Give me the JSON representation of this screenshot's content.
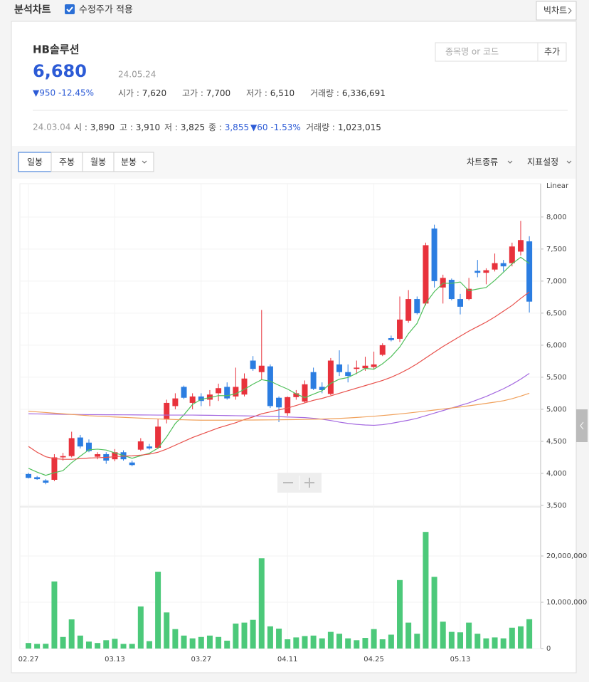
{
  "header": {
    "title": "분석차트",
    "checkbox": "수정주가 적용",
    "button": "빅차트"
  },
  "stock": {
    "name": "HB솔루션",
    "price": "6,680",
    "date": "24.05.24",
    "change": "▼950 -12.45%",
    "fields": [
      {
        "label": "시가 :",
        "value": "7,620"
      },
      {
        "label": "고가 :",
        "value": "7,700"
      },
      {
        "label": "저가 :",
        "value": "6,510"
      },
      {
        "label": "거래량 :",
        "value": "6,336,691"
      }
    ]
  },
  "search": {
    "placeholder": "종목명 or 코드",
    "button": "추가"
  },
  "detail": {
    "date": "24.03.04",
    "fields": [
      {
        "label": "시 :",
        "value": "3,890"
      },
      {
        "label": "고 :",
        "value": "3,910"
      },
      {
        "label": "저 :",
        "value": "3,825"
      },
      {
        "label": "종 :",
        "value": "3,855"
      },
      {
        "label": "",
        "value": "▼60 -1.53%"
      },
      {
        "label": "거래량 :",
        "value": "1,023,015"
      }
    ]
  },
  "tabs": [
    "일봉",
    "주봉",
    "월봉",
    "분봉"
  ],
  "menus": [
    "차트종류",
    "지표설정"
  ],
  "chart_data": {
    "type": "candlestick",
    "scale_label": "Linear",
    "up_color": "#e8323c",
    "down_color": "#2b7de1",
    "categories": [
      "02.27",
      null,
      null,
      null,
      null,
      null,
      null,
      null,
      null,
      null,
      "03.13",
      null,
      null,
      null,
      null,
      null,
      null,
      null,
      null,
      null,
      "03.27",
      null,
      null,
      null,
      null,
      null,
      null,
      null,
      null,
      null,
      "04.11",
      null,
      null,
      null,
      null,
      null,
      null,
      null,
      null,
      null,
      "04.25",
      null,
      null,
      null,
      null,
      null,
      null,
      null,
      null,
      null,
      "05.13",
      null,
      null,
      null,
      null,
      null,
      null,
      null,
      null
    ],
    "open": [
      3990,
      3940,
      3890,
      3900,
      4250,
      4270,
      4560,
      4480,
      4260,
      4300,
      4220,
      4330,
      4170,
      4370,
      4420,
      4400,
      4840,
      5050,
      5350,
      5100,
      5200,
      5150,
      5250,
      5350,
      5200,
      5230,
      5760,
      5580,
      5670,
      5180,
      4940,
      5190,
      5120,
      5580,
      5350,
      5240,
      5700,
      5580,
      5630,
      5640,
      5660,
      5850,
      6110,
      6100,
      6380,
      6720,
      6650,
      7820,
      6900,
      7020,
      6720,
      6720,
      7160,
      7130,
      7180,
      7280,
      7280,
      7460,
      7620
    ],
    "high": [
      4010,
      3960,
      3910,
      4300,
      4320,
      4650,
      4600,
      4530,
      4330,
      4330,
      4380,
      4360,
      4200,
      4550,
      4460,
      4850,
      5150,
      5250,
      5370,
      5250,
      5250,
      5300,
      5400,
      5420,
      5650,
      5560,
      5830,
      6550,
      5700,
      5200,
      5200,
      5300,
      5450,
      5650,
      5420,
      5800,
      5920,
      5700,
      5760,
      5820,
      5900,
      6030,
      6150,
      6760,
      6860,
      6760,
      7600,
      7880,
      7100,
      7040,
      6800,
      7050,
      7330,
      7200,
      7430,
      7330,
      7600,
      7940,
      7700
    ],
    "low": [
      3920,
      3900,
      3830,
      3880,
      4200,
      4250,
      4390,
      4330,
      4220,
      4150,
      4190,
      4200,
      4110,
      4350,
      4370,
      4380,
      4780,
      5000,
      5160,
      5000,
      5050,
      5050,
      5130,
      5150,
      5150,
      5200,
      5600,
      5460,
      5020,
      4800,
      4900,
      5150,
      5100,
      5300,
      5250,
      5220,
      5520,
      5420,
      5550,
      5600,
      5620,
      5830,
      6060,
      6050,
      6350,
      6480,
      6620,
      6900,
      6650,
      6700,
      6480,
      6700,
      7060,
      6950,
      7150,
      7150,
      7230,
      7400,
      6510
    ],
    "close": [
      3930,
      3910,
      3855,
      4250,
      4270,
      4550,
      4420,
      4350,
      4300,
      4200,
      4330,
      4220,
      4130,
      4500,
      4390,
      4730,
      5100,
      5170,
      5180,
      5200,
      5130,
      5230,
      5330,
      5170,
      5350,
      5480,
      5630,
      5680,
      5050,
      5030,
      5190,
      5250,
      5390,
      5320,
      5300,
      5760,
      5580,
      5520,
      5650,
      5680,
      5700,
      6000,
      6080,
      6400,
      6720,
      6500,
      7560,
      7000,
      7050,
      6720,
      6600,
      6880,
      7130,
      7170,
      7280,
      7230,
      7540,
      7640,
      6680
    ],
    "series": [
      {
        "color": "#4fbf5a",
        "values": [
          4080,
          4020,
          3970,
          4010,
          4043,
          4167,
          4269,
          4368,
          4378,
          4364,
          4320,
          4280,
          4236,
          4276,
          4314,
          4394,
          4570,
          4778,
          4914,
          5076,
          5156,
          5182,
          5214,
          5212,
          5242,
          5312,
          5392,
          5462,
          5438,
          5374,
          5316,
          5240,
          5182,
          5236,
          5290,
          5404,
          5470,
          5496,
          5562,
          5638,
          5626,
          5710,
          5822,
          5972,
          6180,
          6340,
          6652,
          6836,
          6966,
          6966,
          6986,
          6850,
          6876,
          6900,
          7012,
          7138,
          7270,
          7372,
          7274
        ]
      },
      {
        "color": "#e8504b",
        "values": [
          4420,
          4330,
          4260,
          4230,
          4220,
          4220,
          4230,
          4240,
          4245,
          4250,
          4260,
          4270,
          4275,
          4285,
          4300,
          4330,
          4380,
          4440,
          4500,
          4560,
          4610,
          4660,
          4710,
          4750,
          4790,
          4840,
          4880,
          4930,
          4960,
          4990,
          5020,
          5060,
          5100,
          5140,
          5170,
          5210,
          5250,
          5290,
          5330,
          5370,
          5410,
          5450,
          5500,
          5560,
          5630,
          5710,
          5800,
          5890,
          5980,
          6060,
          6140,
          6220,
          6290,
          6360,
          6440,
          6530,
          6620,
          6730,
          6830
        ]
      },
      {
        "color": "#a469e0",
        "values": [
          4930,
          4928,
          4926,
          4924,
          4922,
          4920,
          4918,
          4917,
          4916,
          4915,
          4915,
          4914,
          4913,
          4912,
          4911,
          4910,
          4910,
          4910,
          4910,
          4910,
          4908,
          4906,
          4904,
          4902,
          4900,
          4898,
          4896,
          4894,
          4890,
          4885,
          4880,
          4875,
          4870,
          4860,
          4845,
          4825,
          4800,
          4780,
          4765,
          4755,
          4750,
          4760,
          4780,
          4805,
          4830,
          4860,
          4900,
          4940,
          4980,
          5020,
          5060,
          5100,
          5150,
          5200,
          5260,
          5320,
          5390,
          5470,
          5560
        ]
      },
      {
        "color": "#f0a05a",
        "values": [
          4970,
          4960,
          4950,
          4940,
          4930,
          4920,
          4910,
          4900,
          4893,
          4886,
          4880,
          4874,
          4868,
          4862,
          4856,
          4850,
          4845,
          4840,
          4836,
          4833,
          4830,
          4830,
          4830,
          4830,
          4831,
          4832,
          4833,
          4834,
          4835,
          4836,
          4838,
          4840,
          4842,
          4845,
          4848,
          4852,
          4858,
          4865,
          4873,
          4882,
          4892,
          4903,
          4915,
          4928,
          4942,
          4957,
          4972,
          4988,
          5004,
          5020,
          5037,
          5055,
          5073,
          5092,
          5112,
          5133,
          5165,
          5205,
          5250
        ]
      }
    ],
    "ylim": [
      3500,
      8520
    ],
    "yticks": [
      {
        "value": 3500,
        "label": "3,500"
      },
      {
        "value": 4000,
        "label": "4,000"
      },
      {
        "value": 4500,
        "label": "4,500"
      },
      {
        "value": 5000,
        "label": "5,000"
      },
      {
        "value": 5500,
        "label": "5,500"
      },
      {
        "value": 6000,
        "label": "6,000"
      },
      {
        "value": 6500,
        "label": "6,500"
      },
      {
        "value": 7000,
        "label": "7,000"
      },
      {
        "value": 7500,
        "label": "7,500"
      },
      {
        "value": 8000,
        "label": "8,000"
      }
    ],
    "volume": {
      "color": "#4cc97a",
      "values": [
        1200000,
        1000000,
        1023015,
        14500000,
        2500000,
        6300000,
        2800000,
        1500000,
        1200000,
        1800000,
        2100000,
        1000000,
        1000000,
        9100000,
        1600000,
        16600000,
        7800000,
        4200000,
        2800000,
        2200000,
        2500000,
        2800000,
        2500000,
        1700000,
        5400000,
        5600000,
        6200000,
        19500000,
        4800000,
        4300000,
        2000000,
        2400000,
        2700000,
        2800000,
        2200000,
        3600000,
        3200000,
        2200000,
        1800000,
        2300000,
        4200000,
        2000000,
        3000000,
        14800000,
        5600000,
        3200000,
        25200000,
        15500000,
        5800000,
        3600000,
        3500000,
        5600000,
        3200000,
        2200000,
        2400000,
        2200000,
        4500000,
        4800000,
        6336691
      ],
      "ylim": [
        0,
        30150000
      ],
      "yticks": [
        0,
        {
          "value": 10000000,
          "label": "10,000,000"
        },
        {
          "value": 20000000,
          "label": "20,000,000"
        }
      ]
    },
    "grid": true
  }
}
